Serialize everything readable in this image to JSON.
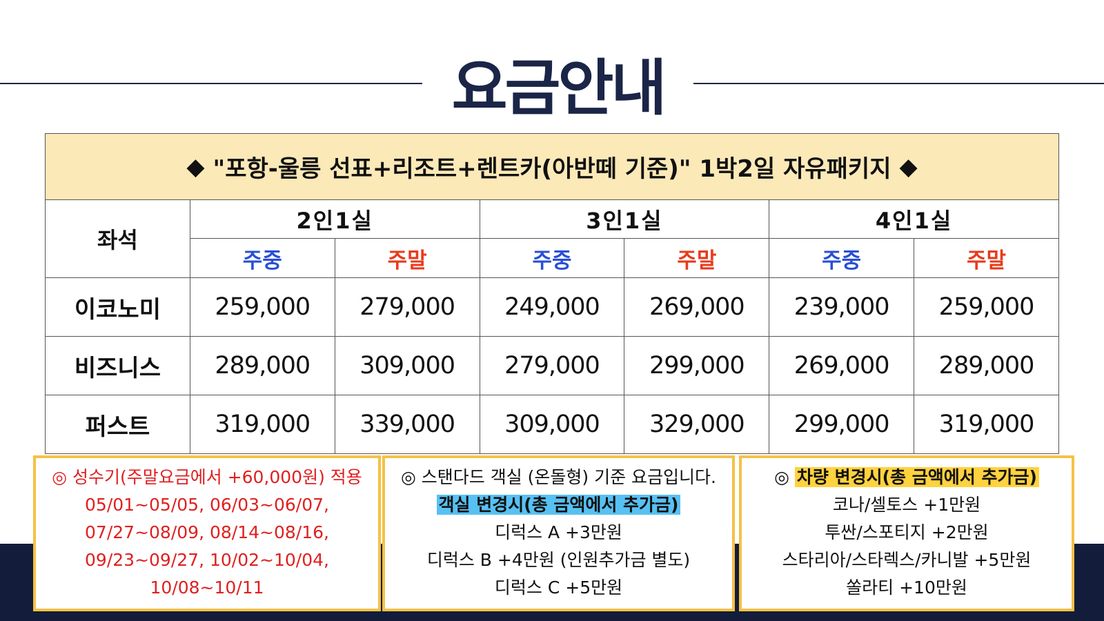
{
  "page_title": "요금안내",
  "package": {
    "diamond": "◆",
    "title": "\"포항-울릉 선표+리조트+렌트카(아반떼 기준)\" 1박2일 자유패키지"
  },
  "table": {
    "seat_header": "좌석",
    "rooms": [
      "2인1실",
      "3인1실",
      "4인1실"
    ],
    "weekday_label": "주중",
    "weekend_label": "주말",
    "rows": [
      {
        "grade": "이코노미",
        "prices": [
          "259,000",
          "279,000",
          "249,000",
          "269,000",
          "239,000",
          "259,000"
        ]
      },
      {
        "grade": "비즈니스",
        "prices": [
          "289,000",
          "309,000",
          "279,000",
          "299,000",
          "269,000",
          "289,000"
        ]
      },
      {
        "grade": "퍼스트",
        "prices": [
          "319,000",
          "339,000",
          "309,000",
          "329,000",
          "299,000",
          "319,000"
        ]
      }
    ]
  },
  "notes": {
    "peak": {
      "lines": [
        "◎ 성수기(주말요금에서 +60,000원) 적용",
        "05/01~05/05, 06/03~06/07,",
        "07/27~08/09, 08/14~08/16,",
        "09/23~09/27, 10/02~10/04,",
        "10/08~10/11"
      ]
    },
    "room": {
      "intro": "◎ 스탠다드 객실 (온돌형) 기준 요금입니다.",
      "highlight": "객실 변경시(총 금액에서 추가금)",
      "lines": [
        "디럭스 A +3만원",
        "디럭스 B +4만원 (인원추가금 별도)",
        "디럭스 C +5만원"
      ]
    },
    "car": {
      "marker": "◎",
      "highlight": "차량 변경시(총 금액에서 추가금)",
      "lines": [
        "코나/셀토스 +1만원",
        "투싼/스포티지 +2만원",
        "스타리아/스타렉스/카니발 +5만원",
        "쏠라티 +10만원"
      ]
    }
  },
  "colors": {
    "navy": "#1b2547",
    "banner": "#fce9b8",
    "weekday": "#2a4fd6",
    "weekend": "#e83a1c",
    "note_border": "#f5c146",
    "highlight_blue": "#57c1f3",
    "highlight_yellow": "#ffd23f",
    "peak_text": "#e02020"
  }
}
